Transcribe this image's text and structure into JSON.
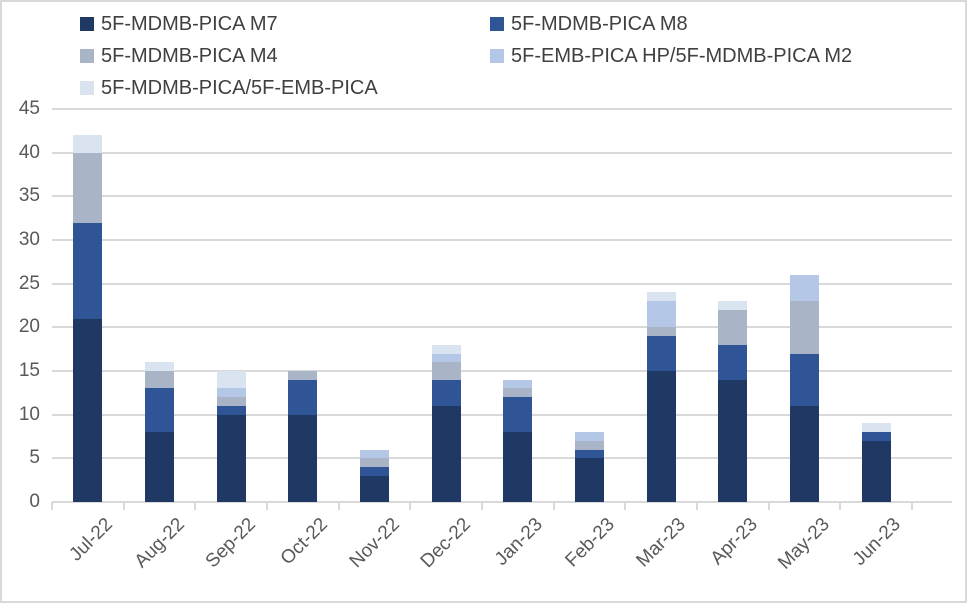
{
  "chart_data": {
    "type": "bar",
    "stacked": true,
    "title": "",
    "xlabel": "",
    "ylabel": "",
    "categories": [
      "Jul-22",
      "Aug-22",
      "Sep-22",
      "Oct-22",
      "Nov-22",
      "Dec-22",
      "Jan-23",
      "Feb-23",
      "Mar-23",
      "Apr-23",
      "May-23",
      "Jun-23"
    ],
    "series": [
      {
        "name": "5F-MDMB-PICA M7",
        "color": "#1F3864",
        "values": [
          21,
          8,
          10,
          10,
          3,
          11,
          8,
          5,
          15,
          14,
          11,
          7
        ]
      },
      {
        "name": "5F-MDMB-PICA M8",
        "color": "#2F5597",
        "values": [
          11,
          5,
          1,
          4,
          1,
          3,
          4,
          1,
          4,
          4,
          6,
          1
        ]
      },
      {
        "name": "5F-MDMB-PICA M4",
        "color": "#A9B4C7",
        "values": [
          8,
          2,
          1,
          1,
          1,
          2,
          1,
          1,
          1,
          4,
          6,
          0
        ]
      },
      {
        "name": "5F-EMB-PICA HP/5F-MDMB-PICA M2",
        "color": "#B4C7E7",
        "values": [
          0,
          0,
          1,
          0,
          1,
          1,
          1,
          1,
          3,
          0,
          3,
          0
        ]
      },
      {
        "name": "5F-MDMB-PICA/5F-EMB-PICA",
        "color": "#DAE3F0",
        "values": [
          2,
          1,
          2,
          0,
          0,
          1,
          0,
          0,
          1,
          1,
          0,
          1
        ]
      }
    ],
    "stack_totals": [
      42,
      16,
      15,
      15,
      6,
      18,
      14,
      8,
      24,
      23,
      26,
      9
    ],
    "ylim": [
      0,
      45
    ],
    "ytick_step": 5,
    "yticks": [
      "0",
      "5",
      "10",
      "15",
      "20",
      "25",
      "30",
      "35",
      "40",
      "45"
    ],
    "grid": true,
    "legend_position": "top-left-two-columns"
  },
  "colors": {
    "background": "#FFFFFF",
    "gridline": "#D9D9D9",
    "border": "#D9D9D9",
    "axis_text": "#595959",
    "legend_text": "#404040"
  }
}
